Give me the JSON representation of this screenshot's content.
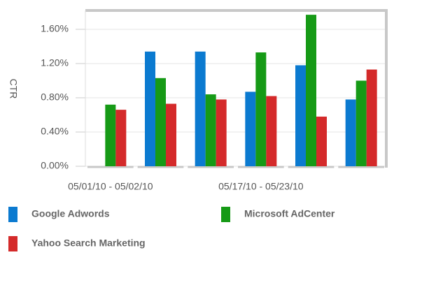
{
  "chart_data": {
    "type": "bar",
    "y_label": "CTR",
    "categories": [
      "05/01/10 - 05/02/10",
      null,
      null,
      "05/17/10 - 05/23/10",
      null,
      null
    ],
    "series": [
      {
        "name": "Google Adwords",
        "color": "#0b7ad0",
        "values": [
          null,
          1.34,
          1.34,
          0.87,
          1.18,
          0.78
        ]
      },
      {
        "name": "Microsoft AdCenter",
        "color": "#169a16",
        "values": [
          0.72,
          1.03,
          0.84,
          1.33,
          1.77,
          1.0
        ]
      },
      {
        "name": "Yahoo Search Marketing",
        "color": "#d42a2a",
        "values": [
          0.66,
          0.73,
          0.78,
          0.82,
          0.58,
          1.13
        ]
      }
    ],
    "ylim": [
      0,
      1.82
    ],
    "yticks": [
      {
        "value": 0,
        "label": "0.00%"
      },
      {
        "value": 0.4,
        "label": "0.40%"
      },
      {
        "value": 0.8,
        "label": "0.80%"
      },
      {
        "value": 1.2,
        "label": "1.20%"
      },
      {
        "value": 1.6,
        "label": "1.60%"
      }
    ],
    "grid": true
  }
}
